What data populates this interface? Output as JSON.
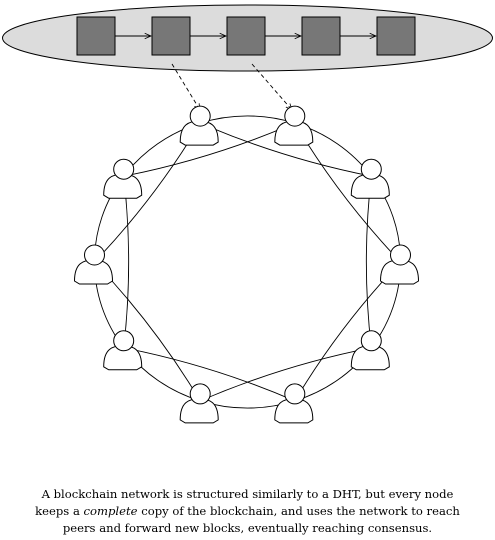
{
  "diagram": {
    "chain": {
      "block_count": 5,
      "ellipse_fill": "#dcdcdc",
      "block_fill": "#777777"
    },
    "network": {
      "peer_count": 10,
      "stroke": "#000000"
    }
  },
  "caption": {
    "line1": "A blockchain network is structured similarly to a DHT, but every node",
    "line2_before": "keeps a ",
    "line2_emph": "complete",
    "line2_after": " copy of the blockchain, and uses the network to reach",
    "line3": "peers and forward new blocks, eventually reaching consensus."
  }
}
